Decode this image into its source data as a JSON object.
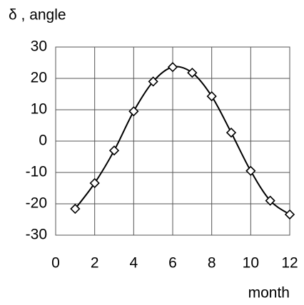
{
  "chart_data": {
    "type": "line",
    "title": "δ , angle",
    "x_label": "month",
    "x": [
      1,
      2,
      3,
      4,
      5,
      6,
      7,
      8,
      9,
      10,
      11,
      12
    ],
    "series": [
      {
        "name": "δ",
        "color": "#000000",
        "values": [
          -21.6,
          -13.4,
          -3,
          9.5,
          19,
          23.6,
          21.8,
          14.3,
          2.7,
          -9.5,
          -19,
          -23.4
        ]
      }
    ],
    "xlim": [
      0,
      12
    ],
    "xticks": [
      0,
      2,
      4,
      6,
      8,
      10,
      12
    ],
    "ylim": [
      -30,
      30
    ],
    "yticks": [
      -30,
      -20,
      -10,
      0,
      10,
      20,
      30
    ],
    "grid": true,
    "marker": "diamond",
    "smooth": true
  }
}
